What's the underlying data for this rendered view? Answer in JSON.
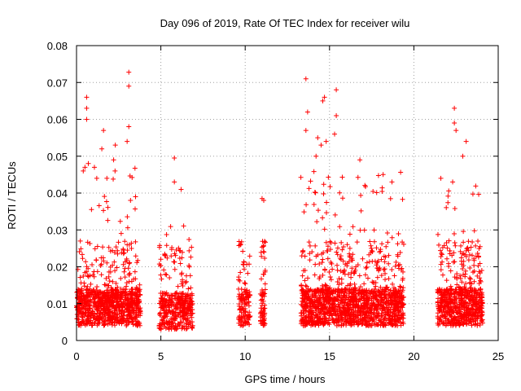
{
  "chart_data": {
    "type": "scatter",
    "title": "Day 096 of 2019, Rate Of TEC Index for receiver wilu",
    "xlabel": "GPS time / hours",
    "ylabel": "ROTI / TECUs",
    "xlim": [
      0,
      25
    ],
    "ylim": [
      0,
      0.08
    ],
    "xticks": [
      0,
      5,
      10,
      15,
      20,
      25
    ],
    "xtick_labels": [
      "0",
      "5",
      "10",
      "15",
      "20",
      "25"
    ],
    "yticks": [
      0,
      0.01,
      0.02,
      0.03,
      0.04,
      0.05,
      0.06,
      0.07,
      0.08
    ],
    "ytick_labels": [
      "0",
      "0.01",
      "0.02",
      "0.03",
      "0.04",
      "0.05",
      "0.06",
      "0.07",
      "0.08"
    ],
    "grid": true,
    "marker": "+",
    "color": "#ff0000",
    "clusters": [
      {
        "x_start": 0.0,
        "x_end": 3.8,
        "y_base": 0.009,
        "y_peak": 0.073,
        "density": 900
      },
      {
        "x_start": 4.9,
        "x_end": 6.9,
        "y_base": 0.008,
        "y_peak": 0.05,
        "density": 380
      },
      {
        "x_start": 9.6,
        "x_end": 10.3,
        "y_base": 0.009,
        "y_peak": 0.03,
        "density": 120
      },
      {
        "x_start": 10.9,
        "x_end": 11.2,
        "y_base": 0.009,
        "y_peak": 0.039,
        "density": 70
      },
      {
        "x_start": 13.3,
        "x_end": 19.4,
        "y_base": 0.009,
        "y_peak": 0.071,
        "density": 1400
      },
      {
        "x_start": 21.4,
        "x_end": 24.1,
        "y_base": 0.009,
        "y_peak": 0.064,
        "density": 650
      }
    ],
    "highlight_points": [
      {
        "x": 3.1,
        "y": 0.0728
      },
      {
        "x": 3.1,
        "y": 0.069
      },
      {
        "x": 0.6,
        "y": 0.066
      },
      {
        "x": 0.6,
        "y": 0.063
      },
      {
        "x": 0.6,
        "y": 0.06
      },
      {
        "x": 1.6,
        "y": 0.057
      },
      {
        "x": 3.1,
        "y": 0.058
      },
      {
        "x": 3.0,
        "y": 0.054
      },
      {
        "x": 2.3,
        "y": 0.053
      },
      {
        "x": 1.5,
        "y": 0.052
      },
      {
        "x": 2.2,
        "y": 0.049
      },
      {
        "x": 0.7,
        "y": 0.048
      },
      {
        "x": 0.5,
        "y": 0.047
      },
      {
        "x": 0.4,
        "y": 0.046
      },
      {
        "x": 1.2,
        "y": 0.044
      },
      {
        "x": 1.8,
        "y": 0.044
      },
      {
        "x": 3.5,
        "y": 0.039
      },
      {
        "x": 3.2,
        "y": 0.038
      },
      {
        "x": 5.8,
        "y": 0.0495
      },
      {
        "x": 5.8,
        "y": 0.043
      },
      {
        "x": 6.2,
        "y": 0.041
      },
      {
        "x": 11.0,
        "y": 0.0385
      },
      {
        "x": 11.1,
        "y": 0.038
      },
      {
        "x": 13.6,
        "y": 0.071
      },
      {
        "x": 14.7,
        "y": 0.066
      },
      {
        "x": 14.6,
        "y": 0.065
      },
      {
        "x": 15.4,
        "y": 0.068
      },
      {
        "x": 15.4,
        "y": 0.061
      },
      {
        "x": 15.3,
        "y": 0.056
      },
      {
        "x": 13.7,
        "y": 0.062
      },
      {
        "x": 13.6,
        "y": 0.057
      },
      {
        "x": 14.3,
        "y": 0.055
      },
      {
        "x": 14.8,
        "y": 0.054
      },
      {
        "x": 14.5,
        "y": 0.053
      },
      {
        "x": 14.2,
        "y": 0.05
      },
      {
        "x": 16.8,
        "y": 0.049
      },
      {
        "x": 18.7,
        "y": 0.043
      },
      {
        "x": 22.4,
        "y": 0.063
      },
      {
        "x": 22.4,
        "y": 0.059
      },
      {
        "x": 22.5,
        "y": 0.057
      },
      {
        "x": 23.1,
        "y": 0.054
      },
      {
        "x": 22.9,
        "y": 0.05
      },
      {
        "x": 21.6,
        "y": 0.044
      },
      {
        "x": 22.3,
        "y": 0.043
      }
    ]
  }
}
